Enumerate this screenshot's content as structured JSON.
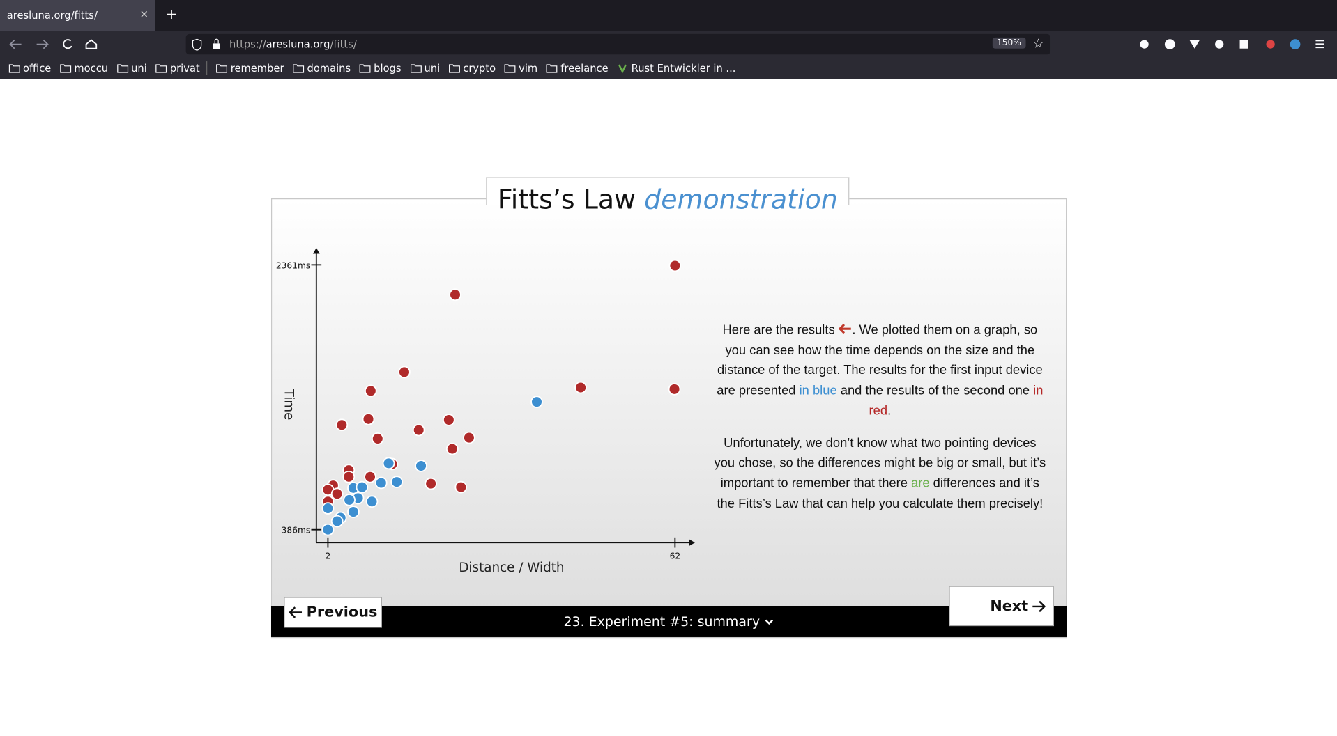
{
  "browser": {
    "tab_title": "aresluna.org/fitts/",
    "url_scheme": "https://",
    "url_domain": "aresluna.org",
    "url_path": "/fitts/",
    "zoom": "150%",
    "bookmarks": [
      "office",
      "moccu",
      "uni",
      "privat",
      "remember",
      "domains",
      "blogs",
      "uni",
      "crypto",
      "vim",
      "freelance",
      "Rust Entwickler in ..."
    ]
  },
  "page": {
    "title_plain": "Fitts’s Law",
    "title_accent": "demonstration",
    "paragraph_1": [
      "Here are the results ",
      ". We plotted them on a graph, so you can see how the time depends on the size and the distance of the target. The results for the first input device are presented ",
      "in blue",
      " and the results of the second one ",
      "in red",
      "."
    ],
    "paragraph_2": [
      "Unfortunately, we don’t know what two pointing devices you chose, so the differences might be big or small, but it’s important to remember that there ",
      "are",
      " differences and it’s the Fitts’s Law that can help you calculate them precisely!"
    ],
    "prev_button": "Previous",
    "next_button": "Next",
    "chapter": "23. Experiment #5: summary"
  },
  "chart_data": {
    "type": "scatter",
    "x_label": "Distance / Width",
    "y_label": "Time",
    "xlim": [
      0,
      65
    ],
    "ylim": [
      290,
      2475
    ],
    "xticks": [
      2,
      62
    ],
    "yticks": [
      {
        "value": 386,
        "label": "386ms"
      },
      {
        "value": 2361,
        "label": "2361ms"
      }
    ],
    "series": [
      {
        "color": "#b02a2a",
        "x": [
          62,
          24,
          15.2,
          45.7,
          61.9,
          9.4,
          4.4,
          9,
          22.9,
          10.6,
          17.7,
          26.4,
          23.5,
          5.6,
          5.6,
          9.3,
          13.1,
          19.8,
          25,
          2.9,
          2,
          3.6,
          2
        ],
        "values": [
          2355,
          2138,
          1561,
          1446,
          1434,
          1421,
          1167,
          1211,
          1205,
          1065,
          1129,
          1072,
          989,
          830,
          780,
          780,
          875,
          729,
          703,
          716,
          684,
          653,
          596
        ]
      },
      {
        "color": "#3d8fd1",
        "x": [
          38.1,
          18.1,
          12.5,
          13.9,
          11.2,
          6.4,
          7.9,
          7.2,
          5.7,
          9.6,
          6.4,
          4.2,
          3.6,
          2,
          2
        ],
        "values": [
          1339,
          862,
          881,
          742,
          735,
          697,
          703,
          621,
          608,
          596,
          519,
          475,
          449,
          545,
          386
        ]
      }
    ]
  }
}
